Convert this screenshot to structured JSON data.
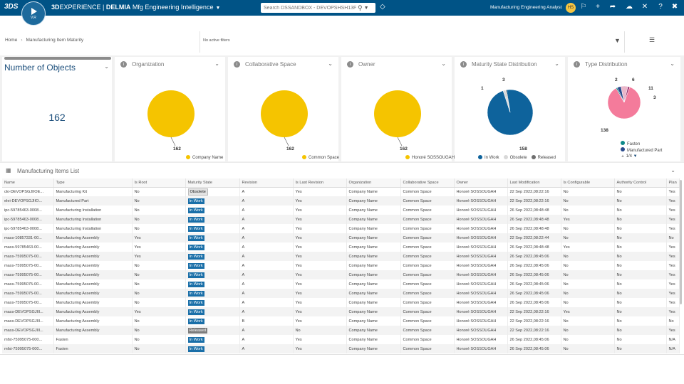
{
  "topbar": {
    "brand_3d": "3D",
    "brand_experience": "EXPERIENCE | ",
    "brand_delmia": "DELMIA",
    "brand_app": " Mfg Engineering Intelligence",
    "compass_version": "V,R",
    "search_placeholder": "Search DSSANDBOX - DEVOPSHSH13F",
    "app_name": "Manufacturing Engineering Analyst",
    "avatar_initials": "HS",
    "colors": {
      "bar": "#005386"
    }
  },
  "breadcrumb": {
    "home": "Home",
    "current": "Manufacturing Item Maturity"
  },
  "filters": {
    "text": "No active filters"
  },
  "tiles": {
    "number": {
      "title": "Number of Objects",
      "value": "162"
    },
    "organization": {
      "title": "Organization",
      "total": "162",
      "legend": [
        "Company Name"
      ]
    },
    "collab": {
      "title": "Collaborative Space",
      "total": "162",
      "legend": [
        "Common Space"
      ]
    },
    "owner": {
      "title": "Owner",
      "total": "162",
      "legend": [
        "Honoré SOSSOUGAH"
      ]
    },
    "maturity": {
      "title": "Maturity State Distribution",
      "legend": [
        "In Work",
        "Obsolete",
        "Released"
      ],
      "labels": [
        "158",
        "3",
        "1"
      ]
    },
    "type": {
      "title": "Type Distribution",
      "legend": [
        "Fasten",
        "Manufactured Part"
      ],
      "labels": [
        "138",
        "2",
        "6",
        "11",
        "3"
      ],
      "pager": "1/4"
    }
  },
  "chart_data": [
    {
      "type": "pie",
      "title": "Organization",
      "categories": [
        "Company Name"
      ],
      "values": [
        162
      ]
    },
    {
      "type": "pie",
      "title": "Collaborative Space",
      "categories": [
        "Common Space"
      ],
      "values": [
        162
      ]
    },
    {
      "type": "pie",
      "title": "Owner",
      "categories": [
        "Honoré SOSSOUGAH"
      ],
      "values": [
        162
      ]
    },
    {
      "type": "pie",
      "title": "Maturity State Distribution",
      "categories": [
        "In Work",
        "Obsolete",
        "Released"
      ],
      "values": [
        158,
        3,
        1
      ],
      "colors": [
        "#0e639c",
        "#d8d8d8",
        "#6e6e6e"
      ]
    },
    {
      "type": "pie",
      "title": "Type Distribution",
      "values": [
        138,
        2,
        6,
        11,
        3
      ],
      "colors": [
        "#f47b9b",
        "#0f8a8a",
        "#2a4a8c",
        "#e9b6c9",
        "#9e2f6e"
      ]
    }
  ],
  "list": {
    "title": "Manufacturing Items List",
    "columns": [
      "Name",
      "Type",
      "Is Root",
      "Maturity State",
      "Revision",
      "Is Last Revision",
      "Organization",
      "Collaborative Space",
      "Owner",
      "Last Modification",
      "Is Configurable",
      "Authority Control",
      "Plan"
    ],
    "rows": [
      [
        "cki-DEVOPSGJIIOE...",
        "Manufacturing Kit",
        "No",
        "Obsolete",
        "A",
        "Yes",
        "Company Name",
        "Common Space",
        "Honoré SOSSOUGAH",
        "22 Sep 2022,08:22:16",
        "No",
        "No",
        "Yes"
      ],
      [
        "elei-DEVOPSGJIIO...",
        "Manufactured Part",
        "No",
        "In Work",
        "A",
        "Yes",
        "Company Name",
        "Common Space",
        "Honoré SOSSOUGAH",
        "22 Sep 2022,08:22:16",
        "No",
        "No",
        "Yes"
      ],
      [
        "ipc-59785463-0008...",
        "Manufacturing Installation",
        "No",
        "In Work",
        "A",
        "Yes",
        "Company Name",
        "Common Space",
        "Honoré SOSSOUGAH",
        "26 Sep 2022,08:48:48",
        "No",
        "No",
        "Yes"
      ],
      [
        "ipc-59785463-0008...",
        "Manufacturing Installation",
        "No",
        "In Work",
        "A",
        "Yes",
        "Company Name",
        "Common Space",
        "Honoré SOSSOUGAH",
        "26 Sep 2022,08:48:48",
        "Yes",
        "No",
        "Yes"
      ],
      [
        "ipc-59785463-0008...",
        "Manufacturing Installation",
        "No",
        "In Work",
        "A",
        "Yes",
        "Company Name",
        "Common Space",
        "Honoré SOSSOUGAH",
        "26 Sep 2022,08:48:48",
        "No",
        "No",
        "Yes"
      ],
      [
        "mass-10857331-00...",
        "Manufacturing Assembly",
        "Yes",
        "In Work",
        "A",
        "Yes",
        "Company Name",
        "Common Space",
        "Honoré SOSSOUGAH",
        "22 Sep 2022,08:22:44",
        "No",
        "No",
        "No"
      ],
      [
        "mass-59785463-00...",
        "Manufacturing Assembly",
        "Yes",
        "In Work",
        "A",
        "Yes",
        "Company Name",
        "Common Space",
        "Honoré SOSSOUGAH",
        "26 Sep 2022,08:48:48",
        "Yes",
        "No",
        "Yes"
      ],
      [
        "mass-75995075-00...",
        "Manufacturing Assembly",
        "Yes",
        "In Work",
        "A",
        "Yes",
        "Company Name",
        "Common Space",
        "Honoré SOSSOUGAH",
        "26 Sep 2022,08:45:06",
        "No",
        "No",
        "Yes"
      ],
      [
        "mass-75995075-00...",
        "Manufacturing Assembly",
        "No",
        "In Work",
        "A",
        "Yes",
        "Company Name",
        "Common Space",
        "Honoré SOSSOUGAH",
        "26 Sep 2022,08:45:06",
        "No",
        "No",
        "Yes"
      ],
      [
        "mass-75995075-00...",
        "Manufacturing Assembly",
        "No",
        "In Work",
        "A",
        "Yes",
        "Company Name",
        "Common Space",
        "Honoré SOSSOUGAH",
        "26 Sep 2022,08:45:06",
        "No",
        "No",
        "Yes"
      ],
      [
        "mass-75995075-00...",
        "Manufacturing Assembly",
        "No",
        "In Work",
        "A",
        "Yes",
        "Company Name",
        "Common Space",
        "Honoré SOSSOUGAH",
        "26 Sep 2022,08:45:06",
        "No",
        "No",
        "Yes"
      ],
      [
        "mass-75995075-00...",
        "Manufacturing Assembly",
        "No",
        "In Work",
        "A",
        "Yes",
        "Company Name",
        "Common Space",
        "Honoré SOSSOUGAH",
        "26 Sep 2022,08:45:06",
        "No",
        "No",
        "Yes"
      ],
      [
        "mass-75995075-00...",
        "Manufacturing Assembly",
        "No",
        "In Work",
        "A",
        "Yes",
        "Company Name",
        "Common Space",
        "Honoré SOSSOUGAH",
        "26 Sep 2022,08:45:06",
        "No",
        "No",
        "Yes"
      ],
      [
        "mass-DEVOPSGJIIl...",
        "Manufacturing Assembly",
        "Yes",
        "In Work",
        "A",
        "Yes",
        "Company Name",
        "Common Space",
        "Honoré SOSSOUGAH",
        "22 Sep 2022,08:22:16",
        "Yes",
        "No",
        "Yes"
      ],
      [
        "mass-DEVOPSGJIIl...",
        "Manufacturing Assembly",
        "No",
        "In Work",
        "B",
        "Yes",
        "Company Name",
        "Common Space",
        "Honoré SOSSOUGAH",
        "22 Sep 2022,08:22:16",
        "No",
        "No",
        "No"
      ],
      [
        "mass-DEVOPSGJIIl...",
        "Manufacturing Assembly",
        "No",
        "Released",
        "A",
        "No",
        "Company Name",
        "Common Space",
        "Honoré SOSSOUGAH",
        "22 Sep 2022,08:22:16",
        "No",
        "No",
        "Yes"
      ],
      [
        "mfst-75995075-000...",
        "Fasten",
        "No",
        "In Work",
        "A",
        "Yes",
        "Company Name",
        "Common Space",
        "Honoré SOSSOUGAH",
        "26 Sep 2022,08:45:06",
        "No",
        "No",
        "N/A"
      ],
      [
        "mfst-75995075-000...",
        "Fasten",
        "No",
        "In Work",
        "A",
        "Yes",
        "Company Name",
        "Common Space",
        "Honoré SOSSOUGAH",
        "26 Sep 2022,08:45:06",
        "No",
        "No",
        "N/A"
      ]
    ]
  }
}
